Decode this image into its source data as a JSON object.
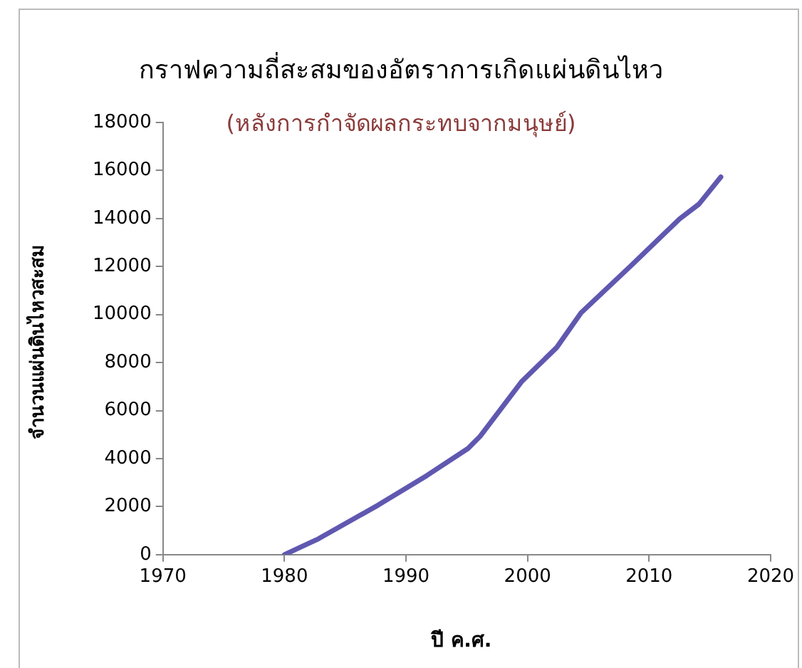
{
  "chart_data": {
    "type": "line",
    "title": "กราฟความถี่สะสมของอัตราการเกิดแผ่นดินไหว",
    "subtitle": "(หลังการกำจัดผลกระทบจากมนุษย์)",
    "xlabel": "ปี ค.ศ.",
    "ylabel": "จำนวนแผ่นดินไหวสะสม",
    "series": [
      {
        "color": "#6058b0",
        "x": [
          1980,
          1982.8,
          1987.7,
          1991.7,
          1995.1,
          1996.1,
          1999.5,
          2002.4,
          2004.4,
          2008.5,
          2012.5,
          2014.1,
          2015.9
        ],
        "values": [
          0,
          660,
          2060,
          3290,
          4420,
          4930,
          7200,
          8630,
          10070,
          12030,
          13980,
          14600,
          15730
        ]
      }
    ],
    "xlim": [
      1970,
      2020
    ],
    "xticks": [
      1970,
      1980,
      1990,
      2000,
      2010,
      2020
    ],
    "ylim": [
      0,
      18000
    ],
    "yticks": [
      0,
      2000,
      4000,
      6000,
      8000,
      10000,
      12000,
      14000,
      16000,
      18000
    ],
    "grid": false,
    "legend": false,
    "marker": "none",
    "line_style": "solid"
  }
}
